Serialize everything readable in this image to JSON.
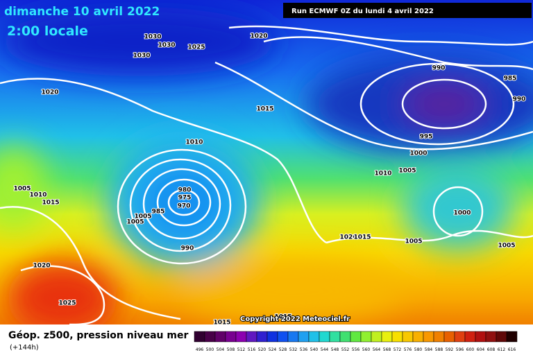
{
  "header": {
    "date": "dimanche 10 avril 2022",
    "time": "2:00 locale"
  },
  "run_label": "Run ECMWF 0Z du lundi 4 avril 2022",
  "isobar_labels": [
    1030,
    1030,
    1030,
    1025,
    1020,
    1020,
    1015,
    1010,
    990,
    985,
    990,
    995,
    1000,
    1010,
    1005,
    1005,
    1010,
    1015,
    980,
    975,
    970,
    985,
    1005,
    1005,
    990,
    1000,
    1020,
    1015,
    1005,
    1005,
    1020,
    1025,
    1015,
    1015
  ],
  "copyright": "Copyright 2022 Meteociel.fr",
  "legend": {
    "title": "Géop. z500, pression niveau mer",
    "lead_time": "(+144h)",
    "scale": [
      496,
      500,
      504,
      508,
      512,
      516,
      520,
      524,
      528,
      532,
      536,
      540,
      544,
      548,
      552,
      556,
      560,
      564,
      568,
      572,
      576,
      580,
      584,
      588,
      592,
      596,
      600,
      604,
      608,
      612,
      616
    ]
  }
}
